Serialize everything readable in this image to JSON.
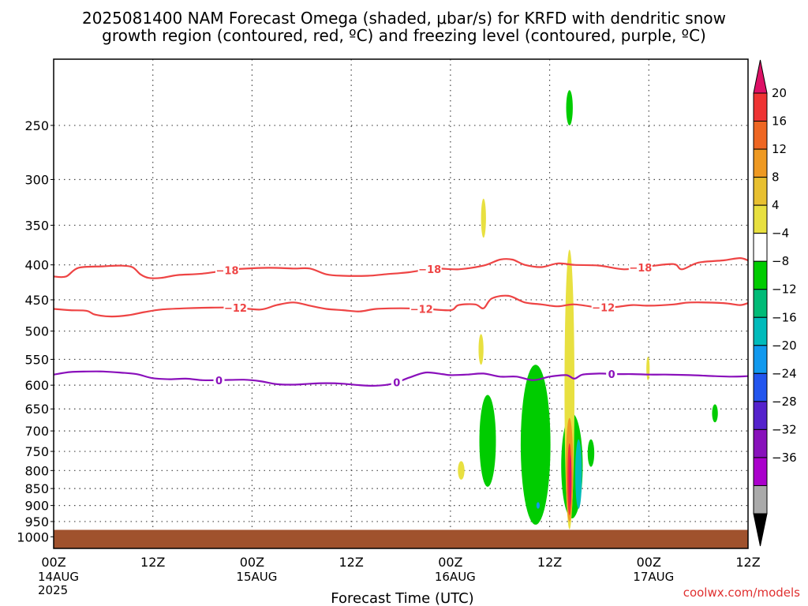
{
  "chart_data": {
    "type": "area",
    "title_line1": "2025081400 NAM Forecast Omega (shaded, μbar/s) for KRFD with dendritic snow",
    "title_line2": "growth region (contoured, red, ºC) and freezing level (contoured, purple, ºC)",
    "xlabel": "Forecast Time (UTC)",
    "ylabel": "",
    "credit": "coolwx.com/models",
    "y_scale": "log-pressure",
    "y_ticks": [
      250,
      300,
      350,
      400,
      450,
      500,
      550,
      600,
      650,
      700,
      750,
      800,
      850,
      900,
      950,
      1000
    ],
    "ylim_hpa": [
      1040,
      200
    ],
    "xlim_hours": [
      0,
      84
    ],
    "x_ticks": [
      {
        "hour": 0,
        "label": "00Z",
        "date": "14AUG",
        "year": "2025"
      },
      {
        "hour": 12,
        "label": "12Z",
        "date": "",
        "year": ""
      },
      {
        "hour": 24,
        "label": "00Z",
        "date": "15AUG",
        "year": ""
      },
      {
        "hour": 36,
        "label": "12Z",
        "date": "",
        "year": ""
      },
      {
        "hour": 48,
        "label": "00Z",
        "date": "16AUG",
        "year": ""
      },
      {
        "hour": 60,
        "label": "12Z",
        "date": "",
        "year": ""
      },
      {
        "hour": 72,
        "label": "00Z",
        "date": "17AUG",
        "year": ""
      },
      {
        "hour": 84,
        "label": "12Z",
        "date": "",
        "year": ""
      }
    ],
    "grid": true,
    "ground_top_hpa": 977,
    "colorbar": {
      "labels": [
        "20",
        "16",
        "12",
        "8",
        "4",
        "−4",
        "−8",
        "−12",
        "−16",
        "−20",
        "−24",
        "−28",
        "−32",
        "−36"
      ],
      "colors": [
        "#dd1166",
        "#ee3333",
        "#ee6622",
        "#ee9922",
        "#e8c030",
        "#e8e040",
        "#ffffff",
        "#00cc00",
        "#00bb77",
        "#00bbbb",
        "#1199ee",
        "#2255ee",
        "#5522cc",
        "#8811bb",
        "#aa00cc",
        "#aaaaaa",
        "#000000"
      ]
    },
    "contours": [
      {
        "name": "-18",
        "color": "#ee4444",
        "label_hours": [
          21,
          45.5,
          71
        ],
        "points": [
          [
            0,
            416
          ],
          [
            1.5,
            416
          ],
          [
            3,
            404
          ],
          [
            6,
            402
          ],
          [
            8,
            401
          ],
          [
            9.5,
            403
          ],
          [
            10.5,
            413
          ],
          [
            11.5,
            418
          ],
          [
            13,
            418
          ],
          [
            15,
            414
          ],
          [
            18,
            412
          ],
          [
            22,
            406
          ],
          [
            26,
            404
          ],
          [
            29,
            405
          ],
          [
            31,
            405
          ],
          [
            33,
            413
          ],
          [
            35,
            415
          ],
          [
            38,
            415
          ],
          [
            40,
            413
          ],
          [
            43,
            410
          ],
          [
            46,
            405
          ],
          [
            49,
            406
          ],
          [
            52,
            401
          ],
          [
            54,
            393
          ],
          [
            55.5,
            393
          ],
          [
            57,
            400
          ],
          [
            59,
            403
          ],
          [
            61,
            398
          ],
          [
            63,
            400
          ],
          [
            66,
            401
          ],
          [
            69,
            406
          ],
          [
            72,
            402
          ],
          [
            75,
            399
          ],
          [
            76,
            406
          ],
          [
            78,
            397
          ],
          [
            81,
            394
          ],
          [
            83,
            391
          ],
          [
            84,
            394
          ]
        ]
      },
      {
        "name": "-12",
        "color": "#ee4444",
        "label_hours": [
          22,
          44.5,
          66.5
        ],
        "points": [
          [
            0,
            464
          ],
          [
            2,
            466
          ],
          [
            4,
            467
          ],
          [
            5,
            473
          ],
          [
            7,
            476
          ],
          [
            9,
            474
          ],
          [
            11,
            469
          ],
          [
            13,
            465
          ],
          [
            16,
            463
          ],
          [
            19,
            462
          ],
          [
            22,
            462
          ],
          [
            25,
            465
          ],
          [
            27,
            458
          ],
          [
            29,
            454
          ],
          [
            31,
            459
          ],
          [
            33,
            464
          ],
          [
            35,
            466
          ],
          [
            37,
            468
          ],
          [
            39,
            464
          ],
          [
            42,
            463
          ],
          [
            45,
            464
          ],
          [
            48,
            466
          ],
          [
            49,
            458
          ],
          [
            51,
            457
          ],
          [
            52,
            463
          ],
          [
            53,
            448
          ],
          [
            55,
            444
          ],
          [
            57,
            454
          ],
          [
            59,
            457
          ],
          [
            61,
            460
          ],
          [
            63,
            457
          ],
          [
            66,
            462
          ],
          [
            68,
            461
          ],
          [
            70,
            458
          ],
          [
            72,
            459
          ],
          [
            75,
            457
          ],
          [
            77,
            454
          ],
          [
            81,
            455
          ],
          [
            83,
            458
          ],
          [
            84,
            455
          ]
        ]
      },
      {
        "name": "0",
        "color": "#8a10bb",
        "label_hours": [
          20,
          41.5,
          67.5
        ],
        "points": [
          [
            0,
            579
          ],
          [
            2,
            574
          ],
          [
            4,
            573
          ],
          [
            6,
            573
          ],
          [
            8,
            575
          ],
          [
            10,
            578
          ],
          [
            12,
            586
          ],
          [
            14,
            588
          ],
          [
            16,
            587
          ],
          [
            18,
            590
          ],
          [
            20,
            590
          ],
          [
            23,
            589
          ],
          [
            25,
            592
          ],
          [
            27,
            598
          ],
          [
            29,
            599
          ],
          [
            31,
            597
          ],
          [
            33,
            596
          ],
          [
            35,
            597
          ],
          [
            37,
            600
          ],
          [
            39,
            601
          ],
          [
            41,
            597
          ],
          [
            43,
            585
          ],
          [
            45,
            575
          ],
          [
            47,
            578
          ],
          [
            48,
            580
          ],
          [
            50,
            579
          ],
          [
            52,
            577
          ],
          [
            54,
            583
          ],
          [
            56,
            583
          ],
          [
            58,
            590
          ],
          [
            60,
            583
          ],
          [
            62,
            580
          ],
          [
            63,
            587
          ],
          [
            64,
            579
          ],
          [
            66,
            577
          ],
          [
            68,
            578
          ],
          [
            70,
            578
          ],
          [
            72,
            579
          ],
          [
            74,
            579
          ],
          [
            77,
            580
          ],
          [
            80,
            582
          ],
          [
            82,
            583
          ],
          [
            84,
            582
          ]
        ]
      }
    ],
    "omega_blobs": [
      {
        "hour": 62.4,
        "p_top": 222,
        "p_bot": 250,
        "half_width_h": 0.4,
        "color": "#00cc00"
      },
      {
        "hour": 52.0,
        "p_top": 320,
        "p_bot": 365,
        "half_width_h": 0.3,
        "color": "#e8e040"
      },
      {
        "hour": 51.7,
        "p_top": 505,
        "p_bot": 560,
        "half_width_h": 0.3,
        "color": "#e8e040"
      },
      {
        "hour": 71.9,
        "p_top": 545,
        "p_bot": 590,
        "half_width_h": 0.2,
        "color": "#e8e040"
      },
      {
        "hour": 52.5,
        "p_top": 620,
        "p_bot": 845,
        "half_width_h": 1.0,
        "color": "#00cc00"
      },
      {
        "hour": 49.3,
        "p_top": 775,
        "p_bot": 825,
        "half_width_h": 0.4,
        "color": "#e8e040"
      },
      {
        "hour": 58.3,
        "p_top": 560,
        "p_bot": 960,
        "half_width_h": 1.8,
        "color": "#00cc00"
      },
      {
        "hour": 62.7,
        "p_top": 660,
        "p_bot": 940,
        "half_width_h": 1.3,
        "color": "#00cc00"
      },
      {
        "hour": 62.4,
        "p_top": 380,
        "p_bot": 975,
        "half_width_h": 0.6,
        "color": "#e8e040"
      },
      {
        "hour": 62.4,
        "p_top": 670,
        "p_bot": 950,
        "half_width_h": 0.45,
        "color": "#ee9922"
      },
      {
        "hour": 62.4,
        "p_top": 730,
        "p_bot": 930,
        "half_width_h": 0.25,
        "color": "#ee3333"
      },
      {
        "hour": 62.5,
        "p_top": 760,
        "p_bot": 900,
        "half_width_h": 0.12,
        "color": "#dd1166"
      },
      {
        "hour": 63.5,
        "p_top": 720,
        "p_bot": 910,
        "half_width_h": 0.4,
        "color": "#00bbbb"
      },
      {
        "hour": 65.0,
        "p_top": 720,
        "p_bot": 790,
        "half_width_h": 0.4,
        "color": "#00cc00"
      },
      {
        "hour": 80.0,
        "p_top": 640,
        "p_bot": 680,
        "half_width_h": 0.35,
        "color": "#00cc00"
      },
      {
        "hour": 58.6,
        "p_top": 890,
        "p_bot": 910,
        "half_width_h": 0.2,
        "color": "#1199ee"
      }
    ]
  }
}
